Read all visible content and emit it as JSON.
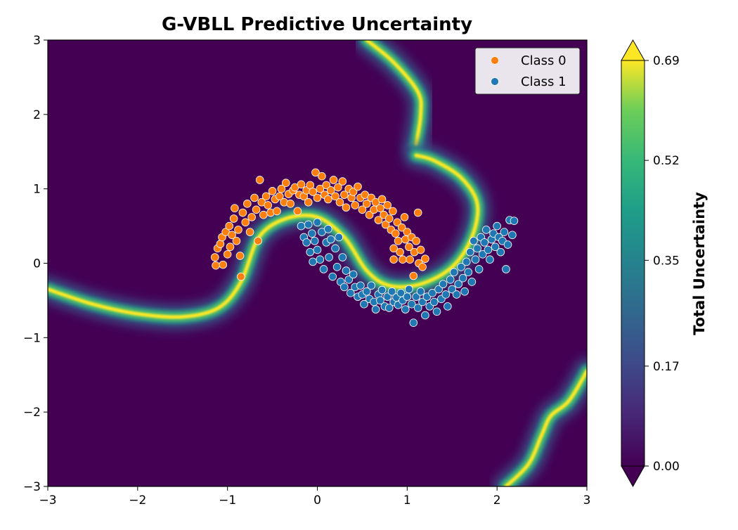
{
  "chart_data": {
    "type": "scatter",
    "title": "G-VBLL Predictive Uncertainty",
    "xlabel": "",
    "ylabel": "",
    "xlim": [
      -3,
      3
    ],
    "ylim": [
      -3,
      3
    ],
    "xticks": [
      -3,
      -2,
      -1,
      0,
      1,
      2,
      3
    ],
    "yticks": [
      -3,
      -2,
      -1,
      0,
      1,
      2,
      3
    ],
    "xtick_labels": [
      "−3",
      "−2",
      "−1",
      "0",
      "1",
      "2",
      "3"
    ],
    "ytick_labels": [
      "−3",
      "−2",
      "−1",
      "0",
      "1",
      "2",
      "3"
    ],
    "grid": false,
    "legend": {
      "placement": "top-right",
      "entries": [
        {
          "label": "Class 0",
          "color": "#ff7f0e"
        },
        {
          "label": "Class 1",
          "color": "#1f77b4"
        }
      ]
    },
    "colorbar": {
      "label": "Total Uncertainty",
      "min": 0.0,
      "max": 0.69,
      "tick_values": [
        0.0,
        0.17,
        0.35,
        0.52,
        0.69
      ],
      "tick_labels": [
        "0.00",
        "0.17",
        "0.35",
        "0.52",
        "0.69"
      ],
      "colormap": "viridis",
      "background_color": "#440154"
    },
    "uncertainty_bands": [
      {
        "name": "top-band",
        "points": [
          [
            0.55,
            3.0
          ],
          [
            0.85,
            2.7
          ],
          [
            1.12,
            2.3
          ],
          [
            1.15,
            2.0
          ],
          [
            1.1,
            1.6
          ]
        ]
      },
      {
        "name": "moon-band",
        "points": [
          [
            -3.0,
            -0.35
          ],
          [
            -2.5,
            -0.55
          ],
          [
            -2.0,
            -0.68
          ],
          [
            -1.5,
            -0.72
          ],
          [
            -1.1,
            -0.6
          ],
          [
            -0.85,
            -0.25
          ],
          [
            -0.65,
            0.35
          ],
          [
            -0.35,
            0.6
          ],
          [
            0.0,
            0.62
          ],
          [
            0.3,
            0.35
          ],
          [
            0.55,
            -0.1
          ],
          [
            0.8,
            -0.3
          ],
          [
            1.15,
            -0.28
          ],
          [
            1.5,
            -0.05
          ],
          [
            1.72,
            0.35
          ],
          [
            1.78,
            0.8
          ],
          [
            1.6,
            1.15
          ],
          [
            1.3,
            1.38
          ],
          [
            1.1,
            1.45
          ]
        ]
      },
      {
        "name": "bottom-band",
        "points": [
          [
            2.1,
            -3.0
          ],
          [
            2.35,
            -2.7
          ],
          [
            2.5,
            -2.3
          ],
          [
            2.6,
            -2.05
          ],
          [
            2.8,
            -1.85
          ],
          [
            3.0,
            -1.45
          ]
        ]
      }
    ],
    "series": [
      {
        "name": "Class 0",
        "color": "#ff7f0e",
        "points": [
          [
            -1.14,
            0.08
          ],
          [
            -1.13,
            -0.03
          ],
          [
            -1.11,
            0.2
          ],
          [
            -1.08,
            0.26
          ],
          [
            -1.06,
            0.35
          ],
          [
            -1.05,
            -0.02
          ],
          [
            -1.02,
            0.42
          ],
          [
            -1.0,
            0.12
          ],
          [
            -0.98,
            0.5
          ],
          [
            -0.97,
            0.22
          ],
          [
            -0.95,
            0.38
          ],
          [
            -0.93,
            0.6
          ],
          [
            -0.92,
            0.74
          ],
          [
            -0.9,
            0.3
          ],
          [
            -0.88,
            0.45
          ],
          [
            -0.86,
            0.1
          ],
          [
            -0.85,
            -0.18
          ],
          [
            -0.83,
            0.68
          ],
          [
            -0.8,
            0.55
          ],
          [
            -0.78,
            0.8
          ],
          [
            -0.75,
            0.42
          ],
          [
            -0.73,
            0.62
          ],
          [
            -0.7,
            0.88
          ],
          [
            -0.68,
            0.72
          ],
          [
            -0.66,
            0.3
          ],
          [
            -0.64,
            1.12
          ],
          [
            -0.62,
            0.82
          ],
          [
            -0.6,
            0.65
          ],
          [
            -0.57,
            0.9
          ],
          [
            -0.55,
            0.78
          ],
          [
            -0.52,
            0.68
          ],
          [
            -0.5,
            0.97
          ],
          [
            -0.47,
            0.86
          ],
          [
            -0.45,
            0.7
          ],
          [
            -0.42,
            0.9
          ],
          [
            -0.4,
            1.0
          ],
          [
            -0.37,
            0.82
          ],
          [
            -0.35,
            1.08
          ],
          [
            -0.32,
            0.93
          ],
          [
            -0.3,
            0.8
          ],
          [
            -0.27,
            0.98
          ],
          [
            -0.25,
            1.02
          ],
          [
            -0.22,
            0.7
          ],
          [
            -0.2,
            0.92
          ],
          [
            -0.18,
            1.06
          ],
          [
            -0.15,
            0.9
          ],
          [
            -0.12,
            0.98
          ],
          [
            -0.1,
            0.82
          ],
          [
            -0.08,
            1.05
          ],
          [
            -0.05,
            0.96
          ],
          [
            -0.02,
            1.22
          ],
          [
            0.0,
            0.88
          ],
          [
            0.03,
            1.0
          ],
          [
            0.05,
            1.17
          ],
          [
            0.08,
            0.92
          ],
          [
            0.1,
            1.05
          ],
          [
            0.12,
            0.86
          ],
          [
            0.15,
            0.98
          ],
          [
            0.18,
            1.12
          ],
          [
            0.2,
            0.9
          ],
          [
            0.23,
            1.02
          ],
          [
            0.25,
            0.82
          ],
          [
            0.28,
            1.1
          ],
          [
            0.3,
            0.92
          ],
          [
            0.32,
            0.75
          ],
          [
            0.35,
            1.0
          ],
          [
            0.38,
            0.88
          ],
          [
            0.4,
            0.96
          ],
          [
            0.42,
            0.78
          ],
          [
            0.45,
            1.03
          ],
          [
            0.48,
            0.88
          ],
          [
            0.5,
            0.72
          ],
          [
            0.53,
            0.92
          ],
          [
            0.55,
            0.8
          ],
          [
            0.58,
            0.65
          ],
          [
            0.6,
            0.88
          ],
          [
            0.63,
            0.72
          ],
          [
            0.65,
            0.82
          ],
          [
            0.68,
            0.58
          ],
          [
            0.7,
            0.74
          ],
          [
            0.72,
            0.86
          ],
          [
            0.74,
            0.65
          ],
          [
            0.76,
            0.52
          ],
          [
            0.78,
            0.78
          ],
          [
            0.8,
            0.6
          ],
          [
            0.82,
            0.45
          ],
          [
            0.84,
            0.7
          ],
          [
            0.85,
            0.2
          ],
          [
            0.85,
            0.05
          ],
          [
            0.87,
            0.4
          ],
          [
            0.89,
            0.55
          ],
          [
            0.9,
            0.3
          ],
          [
            0.92,
            0.15
          ],
          [
            0.94,
            0.48
          ],
          [
            0.95,
            0.05
          ],
          [
            0.97,
            0.62
          ],
          [
            0.98,
            0.32
          ],
          [
            1.0,
            0.42
          ],
          [
            1.02,
            0.22
          ],
          [
            1.03,
            0.05
          ],
          [
            1.05,
            0.35
          ],
          [
            1.07,
            -0.17
          ],
          [
            1.08,
            0.15
          ],
          [
            1.1,
            0.3
          ],
          [
            1.12,
            0.68
          ],
          [
            1.13,
            0.0
          ],
          [
            1.15,
            0.18
          ],
          [
            1.17,
            -0.05
          ],
          [
            1.2,
            0.06
          ]
        ]
      },
      {
        "name": "Class 1",
        "color": "#1f77b4",
        "points": [
          [
            -0.18,
            0.5
          ],
          [
            -0.15,
            0.35
          ],
          [
            -0.12,
            0.28
          ],
          [
            -0.1,
            0.52
          ],
          [
            -0.08,
            0.15
          ],
          [
            -0.06,
            0.4
          ],
          [
            -0.05,
            0.02
          ],
          [
            -0.03,
            0.3
          ],
          [
            0.0,
            0.18
          ],
          [
            0.0,
            0.55
          ],
          [
            0.03,
            0.05
          ],
          [
            0.05,
            0.42
          ],
          [
            0.07,
            -0.08
          ],
          [
            0.1,
            0.28
          ],
          [
            0.12,
            0.46
          ],
          [
            0.13,
            0.08
          ],
          [
            0.15,
            0.32
          ],
          [
            0.17,
            -0.18
          ],
          [
            0.2,
            0.2
          ],
          [
            0.22,
            -0.05
          ],
          [
            0.24,
            0.35
          ],
          [
            0.26,
            -0.25
          ],
          [
            0.28,
            0.08
          ],
          [
            0.3,
            -0.32
          ],
          [
            0.32,
            -0.1
          ],
          [
            0.35,
            -0.22
          ],
          [
            0.37,
            -0.4
          ],
          [
            0.4,
            -0.15
          ],
          [
            0.42,
            -0.32
          ],
          [
            0.45,
            -0.45
          ],
          [
            0.48,
            -0.3
          ],
          [
            0.5,
            -0.42
          ],
          [
            0.52,
            -0.55
          ],
          [
            0.55,
            -0.38
          ],
          [
            0.58,
            -0.48
          ],
          [
            0.6,
            -0.3
          ],
          [
            0.63,
            -0.52
          ],
          [
            0.65,
            -0.62
          ],
          [
            0.68,
            -0.42
          ],
          [
            0.7,
            -0.5
          ],
          [
            0.72,
            -0.36
          ],
          [
            0.75,
            -0.58
          ],
          [
            0.78,
            -0.45
          ],
          [
            0.8,
            -0.6
          ],
          [
            0.83,
            -0.38
          ],
          [
            0.85,
            -0.52
          ],
          [
            0.88,
            -0.46
          ],
          [
            0.9,
            -0.56
          ],
          [
            0.93,
            -0.4
          ],
          [
            0.95,
            -0.5
          ],
          [
            0.98,
            -0.62
          ],
          [
            1.0,
            -0.45
          ],
          [
            1.02,
            -0.35
          ],
          [
            1.05,
            -0.55
          ],
          [
            1.07,
            -0.8
          ],
          [
            1.1,
            -0.45
          ],
          [
            1.12,
            -0.6
          ],
          [
            1.15,
            -0.38
          ],
          [
            1.17,
            -0.52
          ],
          [
            1.2,
            -0.7
          ],
          [
            1.22,
            -0.45
          ],
          [
            1.25,
            -0.58
          ],
          [
            1.28,
            -0.4
          ],
          [
            1.3,
            -0.52
          ],
          [
            1.33,
            -0.65
          ],
          [
            1.35,
            -0.35
          ],
          [
            1.38,
            -0.48
          ],
          [
            1.4,
            -0.28
          ],
          [
            1.43,
            -0.42
          ],
          [
            1.45,
            -0.58
          ],
          [
            1.48,
            -0.22
          ],
          [
            1.5,
            -0.35
          ],
          [
            1.52,
            -0.12
          ],
          [
            1.55,
            -0.42
          ],
          [
            1.57,
            -0.28
          ],
          [
            1.6,
            -0.05
          ],
          [
            1.62,
            -0.2
          ],
          [
            1.64,
            -0.38
          ],
          [
            1.66,
            0.02
          ],
          [
            1.68,
            -0.12
          ],
          [
            1.7,
            0.15
          ],
          [
            1.72,
            -0.25
          ],
          [
            1.74,
            0.3
          ],
          [
            1.76,
            0.05
          ],
          [
            1.78,
            0.2
          ],
          [
            1.8,
            -0.08
          ],
          [
            1.82,
            0.35
          ],
          [
            1.84,
            0.12
          ],
          [
            1.86,
            0.28
          ],
          [
            1.88,
            0.45
          ],
          [
            1.9,
            0.18
          ],
          [
            1.92,
            0.05
          ],
          [
            1.94,
            0.32
          ],
          [
            1.96,
            0.4
          ],
          [
            1.98,
            0.22
          ],
          [
            2.0,
            0.5
          ],
          [
            2.02,
            0.35
          ],
          [
            2.04,
            0.15
          ],
          [
            2.06,
            0.3
          ],
          [
            2.08,
            0.42
          ],
          [
            2.1,
            -0.08
          ],
          [
            2.12,
            0.25
          ],
          [
            2.14,
            0.58
          ],
          [
            2.17,
            0.38
          ],
          [
            2.19,
            0.57
          ]
        ]
      }
    ]
  }
}
